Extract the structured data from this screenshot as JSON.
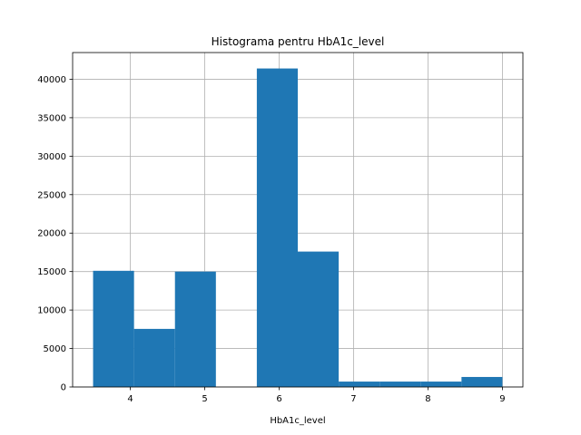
{
  "chart_data": {
    "type": "bar",
    "title": "Histograma pentru HbA1c_level",
    "xlabel": "HbA1c_level",
    "ylabel": "",
    "bin_edges": [
      3.5,
      4.05,
      4.6,
      5.15,
      5.7,
      6.25,
      6.8,
      7.35,
      7.9,
      8.45,
      9.0
    ],
    "values": [
      15100,
      7550,
      15000,
      0,
      41400,
      17600,
      700,
      700,
      700,
      1300
    ],
    "xlim": [
      3.225,
      9.275
    ],
    "ylim": [
      0,
      43470
    ],
    "xticks": [
      4,
      5,
      6,
      7,
      8,
      9
    ],
    "xtick_labels": [
      "4",
      "5",
      "6",
      "7",
      "8",
      "9"
    ],
    "yticks": [
      0,
      5000,
      10000,
      15000,
      20000,
      25000,
      30000,
      35000,
      40000
    ],
    "ytick_labels": [
      "0",
      "5000",
      "10000",
      "15000",
      "20000",
      "25000",
      "30000",
      "35000",
      "40000"
    ],
    "grid": true,
    "bar_color": "#1f77b4",
    "grid_color": "#b0b0b0",
    "legend": "none"
  }
}
